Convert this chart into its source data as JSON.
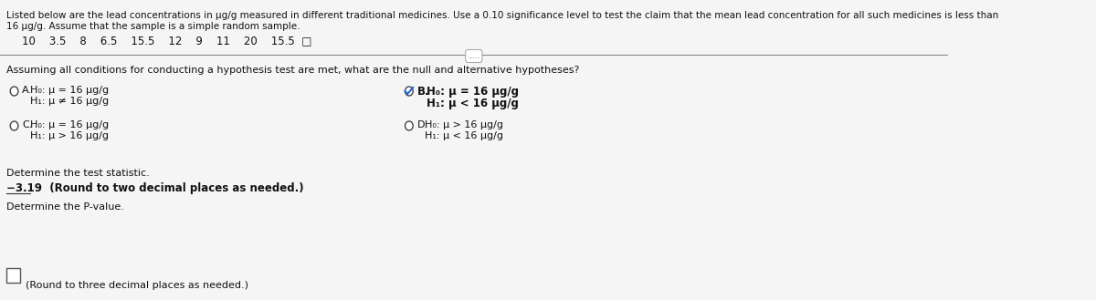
{
  "bg_color": "#f0f0f0",
  "header_text_line1": "Listed below are the lead concentrations in μg/g measured in different traditional medicines. Use a 0.10 significance level to test the claim that the mean lead concentration for all such medicines is less than",
  "header_text_line2": "16 μg/g. Assume that the sample is a simple random sample.",
  "data_values": "10    3.5    8    6.5    15.5    12    9    11    20    15.5  □",
  "separator_label": ".....",
  "question": "Assuming all conditions for conducting a hypothesis test are met, what are the null and alternative hypotheses?",
  "opt_A_label": "A.",
  "opt_A_line1": "H₀: μ = 16 μg/g",
  "opt_A_line2": "H₁: μ ≠ 16 μg/g",
  "opt_B_label": "B.",
  "opt_B_line1": "H₀: μ = 16 μg/g",
  "opt_B_line2": "H₁: μ < 16 μg/g",
  "opt_C_label": "C.",
  "opt_C_line1": "H₀: μ = 16 μg/g",
  "opt_C_line2": "H₁: μ > 16 μg/g",
  "opt_D_label": "D.",
  "opt_D_line1": "H₀: μ > 16 μg/g",
  "opt_D_line2": "H₁: μ < 16 μg/g",
  "test_stat_label": "Determine the test statistic.",
  "test_stat_value": "−3.19  (Round to two decimal places as needed.)",
  "pvalue_label": "Determine the P-value.",
  "pvalue_box": "(Round to three decimal places as needed.)",
  "text_color": "#1a1a2e",
  "dark_blue": "#1a1a5e",
  "radio_color": "#333355",
  "check_color": "#2266cc",
  "selected_B": true
}
